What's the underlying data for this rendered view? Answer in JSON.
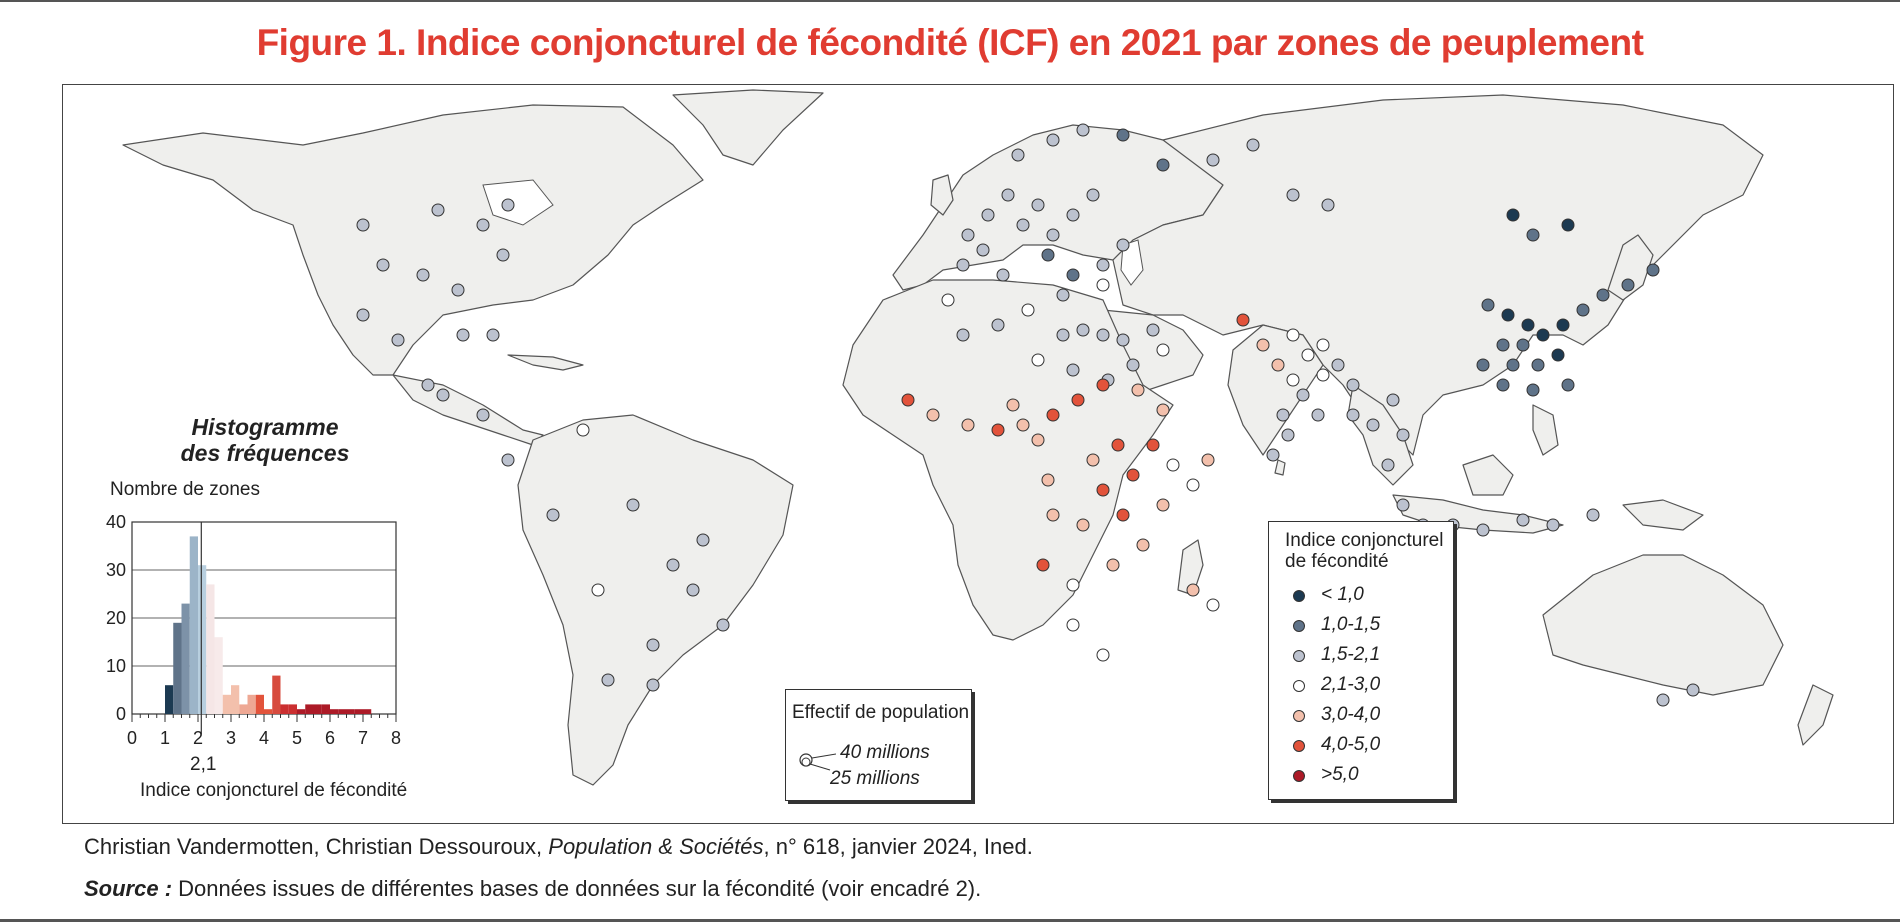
{
  "title": "Figure 1. Indice conjoncturel de fécondité (ICF) en 2021 par zones de peuplement",
  "credit": {
    "authors": "Christian Vandermotten, Christian Dessouroux,",
    "journal": "Population & Sociétés",
    "issue": ", n° 618, janvier 2024, Ined."
  },
  "source": {
    "label": "Source :",
    "text": "Données issues de différentes bases de données sur la fécondité (voir encadré 2)."
  },
  "legend": {
    "title_line1": "Indice conjoncturel",
    "title_line2": "de fécondité",
    "classes": [
      {
        "label": "< 1,0",
        "color": "#1c3a52"
      },
      {
        "label": "1,0-1,5",
        "color": "#5f7389"
      },
      {
        "label": "1,5-2,1",
        "color": "#bcc2cf"
      },
      {
        "label": "2,1-3,0",
        "color": "#ffffff"
      },
      {
        "label": "3,0-4,0",
        "color": "#f3c0ac"
      },
      {
        "label": "4,0-5,0",
        "color": "#e2533b"
      },
      {
        "label": ">5,0",
        "color": "#ac1a27"
      }
    ]
  },
  "population": {
    "title": "Effectif de population",
    "large": "40 millions",
    "small": "25 millions"
  },
  "histogram": {
    "title_line1": "Histogramme",
    "title_line2": "des fréquences",
    "ylabel": "Nombre de zones",
    "xlabel": "Indice conjoncturel de fécondité",
    "marker_label": "2,1",
    "marker_value": 2.1,
    "y_ticks": [
      "40",
      "30",
      "20",
      "10",
      "0"
    ],
    "x_ticks": [
      "0",
      "1",
      "2",
      "3",
      "4",
      "5",
      "6",
      "7",
      "8"
    ],
    "ylim": [
      0,
      40
    ],
    "xlim": [
      0,
      8
    ],
    "bin_width": 0.25,
    "bins_start": [
      1.0,
      1.25,
      1.5,
      1.75,
      2.0,
      2.25,
      2.5,
      2.75,
      3.0,
      3.25,
      3.5,
      3.75,
      4.0,
      4.25,
      4.5,
      4.75,
      5.0,
      5.25,
      5.5,
      5.75,
      6.0,
      6.25,
      6.5,
      6.75,
      7.0,
      7.25
    ],
    "counts": [
      6,
      19,
      23,
      37,
      31,
      27,
      16,
      4,
      6,
      2,
      4,
      4,
      1,
      8,
      2,
      2,
      1,
      2,
      2,
      2,
      1,
      1,
      1,
      1,
      1,
      0
    ],
    "colors": [
      "#1c3a52",
      "#5f7389",
      "#7d92a8",
      "#9cb4c8",
      "#b8cfdf",
      "#f5e6e6",
      "#f7eaea",
      "#f3c0ac",
      "#f3c0ac",
      "#eea894",
      "#eea894",
      "#e2533b",
      "#e2533b",
      "#d74b3e",
      "#cb2f30",
      "#cb2f30",
      "#ac1a27",
      "#ac1a27",
      "#ac1a27",
      "#ac1a27",
      "#ac1a27",
      "#ac1a27",
      "#ac1a27",
      "#ac1a27",
      "#ac1a27",
      "#ac1a27"
    ]
  }
}
